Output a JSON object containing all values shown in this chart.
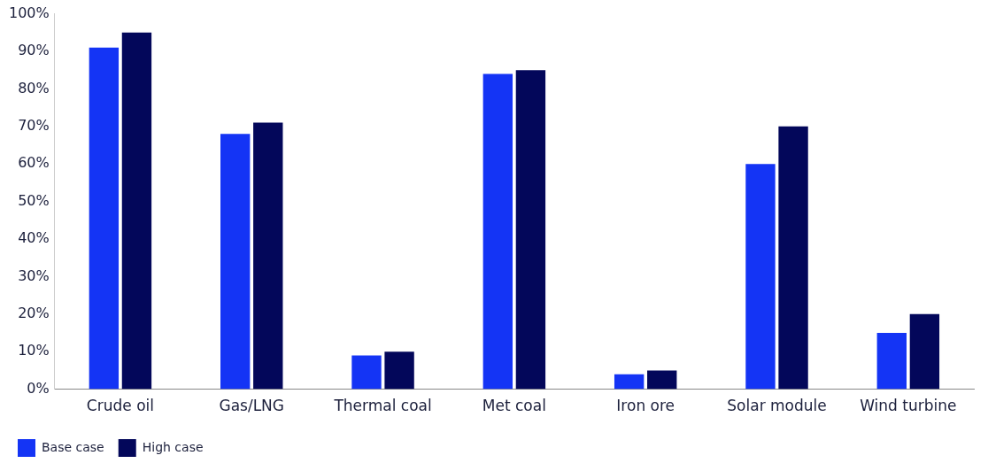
{
  "chart_data": {
    "type": "bar",
    "categories": [
      "Crude oil",
      "Gas/LNG",
      "Thermal coal",
      "Met coal",
      "Iron ore",
      "Solar module",
      "Wind turbine"
    ],
    "series": [
      {
        "name": "Base case",
        "color": "#1434f5",
        "values": [
          91,
          68,
          9,
          84,
          4,
          60,
          15
        ]
      },
      {
        "name": "High case",
        "color": "#03075a",
        "values": [
          95,
          71,
          10,
          85,
          5,
          70,
          20
        ]
      }
    ],
    "ylim": [
      0,
      100
    ],
    "yticks": [
      {
        "value": 0,
        "label": "0%"
      },
      {
        "value": 10,
        "label": "10%"
      },
      {
        "value": 20,
        "label": "20%"
      },
      {
        "value": 30,
        "label": "30%"
      },
      {
        "value": 40,
        "label": "40%"
      },
      {
        "value": 50,
        "label": "50%"
      },
      {
        "value": 60,
        "label": "60%"
      },
      {
        "value": 70,
        "label": "70%"
      },
      {
        "value": 80,
        "label": "80%"
      },
      {
        "value": 90,
        "label": "90%"
      },
      {
        "value": 100,
        "label": "100%"
      }
    ],
    "grid": false,
    "legend": "bottom left"
  }
}
